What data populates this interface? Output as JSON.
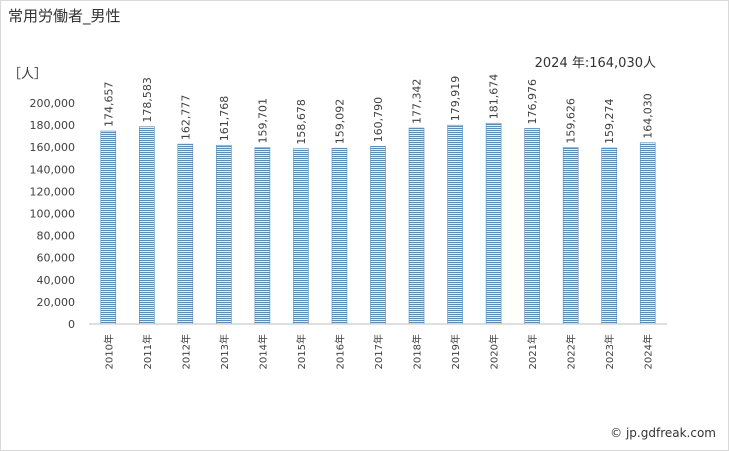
{
  "title": "常用労働者_男性",
  "unit_label": "［人］",
  "annotation": "2024 年:164,030人",
  "credit": "© jp.gdfreak.com",
  "colors": {
    "bar_fill": "#5b8db8",
    "bar_stripe": "#ffffff",
    "axis": "#bfbfbf"
  },
  "chart_data": {
    "type": "bar",
    "title": "常用労働者_男性",
    "ylabel": "［人］",
    "xlabel": "",
    "categories": [
      "2010年",
      "2011年",
      "2012年",
      "2013年",
      "2014年",
      "2015年",
      "2016年",
      "2017年",
      "2018年",
      "2019年",
      "2020年",
      "2021年",
      "2022年",
      "2023年",
      "2024年"
    ],
    "values": [
      174657,
      178583,
      162777,
      161768,
      159701,
      158678,
      159092,
      160790,
      177342,
      179919,
      181674,
      176976,
      159626,
      159274,
      164030
    ],
    "data_labels": [
      "174,657",
      "178,583",
      "162,777",
      "161,768",
      "159,701",
      "158,678",
      "159,092",
      "160,790",
      "177,342",
      "179,919",
      "181,674",
      "176,976",
      "159,626",
      "159,274",
      "164,030"
    ],
    "ylim": [
      0,
      200000
    ],
    "yticks": [
      0,
      20000,
      40000,
      60000,
      80000,
      100000,
      120000,
      140000,
      160000,
      180000,
      200000
    ],
    "ytick_labels": [
      "0",
      "20,000",
      "40,000",
      "60,000",
      "80,000",
      "100,000",
      "120,000",
      "140,000",
      "160,000",
      "180,000",
      "200,000"
    ],
    "grid": false,
    "legend": "none"
  }
}
